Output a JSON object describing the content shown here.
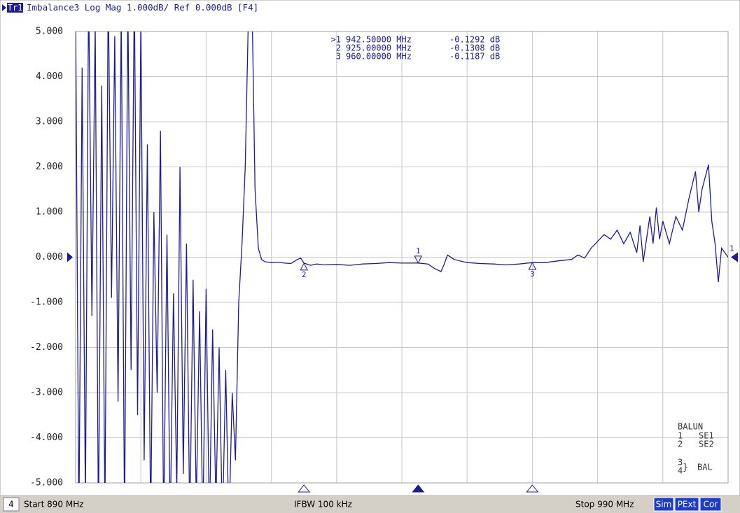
{
  "header": {
    "trace": "Tr1",
    "text": "Imbalance3 Log Mag 1.000dB/ Ref 0.000dB [F4]"
  },
  "chart_data": {
    "type": "line",
    "xlim": [
      890,
      990
    ],
    "xticks": [
      890,
      900,
      910,
      920,
      930,
      940,
      950,
      960,
      970,
      980,
      990
    ],
    "ylim": [
      -5,
      5
    ],
    "yticks": [
      {
        "value": 5,
        "label": "5.000"
      },
      {
        "value": 4,
        "label": "4.000"
      },
      {
        "value": 3,
        "label": "3.000"
      },
      {
        "value": 2,
        "label": "2.000"
      },
      {
        "value": 1,
        "label": "1.000"
      },
      {
        "value": 0,
        "label": "0.000"
      },
      {
        "value": -1,
        "label": "-1.000"
      },
      {
        "value": -2,
        "label": "-2.000"
      },
      {
        "value": -3,
        "label": "-3.000"
      },
      {
        "value": -4,
        "label": "-4.000"
      },
      {
        "value": -5,
        "label": "-5.000"
      }
    ],
    "grid": true,
    "ref_value": 0,
    "trace_id": "1",
    "x": [
      890,
      890.5,
      891,
      891.5,
      892,
      892.5,
      893,
      893.5,
      894,
      894.5,
      895,
      895.5,
      896,
      896.5,
      897,
      897.5,
      898,
      898.5,
      899,
      899.5,
      900,
      900.5,
      901,
      901.5,
      902,
      902.5,
      903,
      903.5,
      904,
      904.5,
      905,
      905.5,
      906,
      906.5,
      907,
      907.5,
      908,
      908.5,
      909,
      909.5,
      910,
      910.5,
      911,
      911.5,
      912,
      912.5,
      913,
      913.5,
      914,
      914.5,
      915,
      915.5,
      916,
      916.5,
      917,
      917.5,
      918,
      918.5,
      919,
      920,
      921,
      922,
      923,
      924,
      924.5,
      925,
      926,
      927,
      928,
      930,
      932,
      934,
      936,
      938,
      940,
      942.5,
      944,
      945,
      946,
      946.5,
      947,
      948,
      950,
      952,
      954,
      956,
      958,
      960,
      962,
      964,
      966,
      967,
      968,
      969,
      970,
      971,
      972,
      973,
      974,
      975,
      976,
      976.5,
      977,
      978,
      978.5,
      979,
      979.5,
      980,
      981,
      982,
      983,
      984,
      985,
      985.5,
      986,
      987,
      987.5,
      988,
      988.5,
      989,
      990
    ],
    "series": [
      {
        "name": "Tr1",
        "color": "#1c1c96",
        "values": [
          5.5,
          -6,
          4.2,
          -5.5,
          6,
          -1.3,
          5.2,
          -6,
          3.8,
          -5.8,
          6,
          -0.9,
          4.9,
          -3.2,
          5.5,
          -6,
          5.8,
          -2.5,
          6,
          -3.5,
          5.3,
          -4.5,
          2.5,
          -6,
          1.0,
          -3.0,
          2.8,
          -6,
          0.5,
          -6,
          -0.8,
          -5.2,
          2.0,
          -4.8,
          0.3,
          -6,
          -0.5,
          -5.5,
          -1.2,
          -6,
          -0.7,
          -6,
          -1.6,
          -5.5,
          -2.0,
          -6,
          -2.5,
          -6,
          -3.0,
          -4.5,
          -1.0,
          0.3,
          2.0,
          5.5,
          6,
          1.5,
          0.2,
          -0.05,
          -0.1,
          -0.12,
          -0.11,
          -0.13,
          -0.14,
          -0.05,
          -0.02,
          -0.13,
          -0.18,
          -0.15,
          -0.17,
          -0.16,
          -0.18,
          -0.15,
          -0.14,
          -0.12,
          -0.13,
          -0.1292,
          -0.15,
          -0.25,
          -0.32,
          -0.15,
          0.05,
          -0.05,
          -0.12,
          -0.14,
          -0.15,
          -0.17,
          -0.15,
          -0.1187,
          -0.12,
          -0.08,
          -0.05,
          0.05,
          -0.02,
          0.2,
          0.35,
          0.5,
          0.4,
          0.6,
          0.3,
          0.55,
          0.1,
          0.7,
          -0.1,
          0.9,
          0.3,
          1.1,
          0.4,
          0.8,
          0.3,
          0.9,
          0.6,
          1.3,
          1.9,
          1.0,
          1.5,
          2.05,
          0.8,
          0.3,
          -0.55,
          0.2,
          0.0
        ]
      }
    ],
    "markers": [
      {
        "name": ">1",
        "id": "1",
        "active": true,
        "x": 942.5,
        "x_label": "942.50000 MHz",
        "y": -0.1292,
        "y_label": "-0.1292 dB"
      },
      {
        "name": "2",
        "id": "2",
        "active": false,
        "x": 925,
        "x_label": "925.00000 MHz",
        "y": -0.1308,
        "y_label": "-0.1308 dB"
      },
      {
        "name": "3",
        "id": "3",
        "active": false,
        "x": 960,
        "x_label": "960.00000 MHz",
        "y": -0.1187,
        "y_label": "-0.1187 dB"
      }
    ],
    "balun": {
      "title": "BALUN",
      "ports": [
        [
          "1",
          "SE1"
        ],
        [
          "2",
          "SE2"
        ]
      ],
      "bal_ports": [
        "3",
        "4"
      ],
      "bal_brace": "}",
      "bal": "BAL"
    }
  },
  "status": {
    "channel": "4",
    "start": "Start 890 MHz",
    "ifbw": "IFBW 100 kHz",
    "stop": "Stop 990 MHz",
    "flags": [
      "Sim",
      "PExt",
      "Cor"
    ]
  }
}
